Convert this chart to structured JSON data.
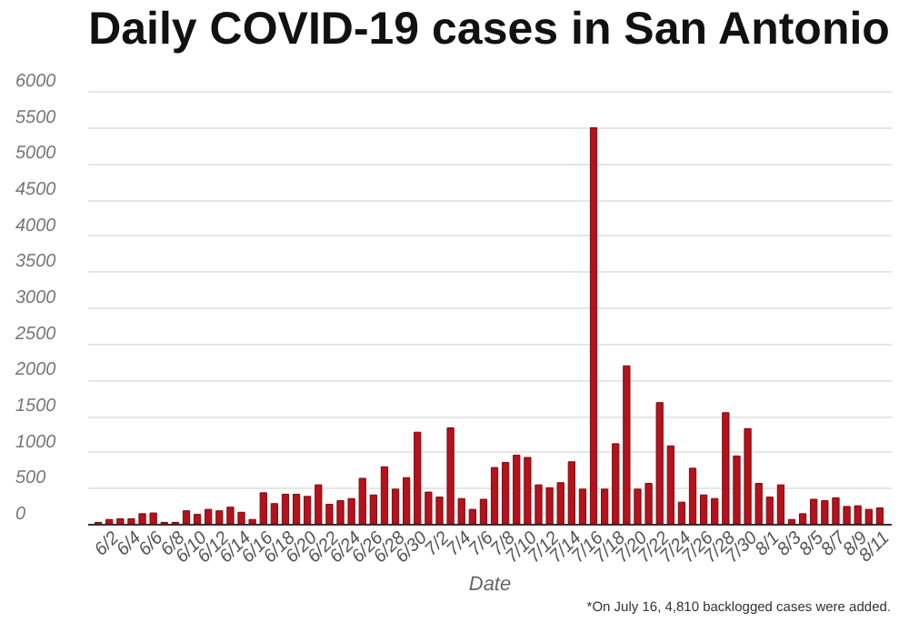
{
  "chart_data": {
    "type": "bar",
    "title": "Daily COVID-19 cases in San Antonio",
    "xlabel": "Date",
    "annotations": [
      "*On July 16, 4,810 backlogged cases were added."
    ],
    "categories": [
      null,
      "6/2",
      null,
      "6/4",
      null,
      "6/6",
      null,
      "6/8",
      null,
      "6/10",
      null,
      "6/12",
      null,
      "6/14",
      null,
      "6/16",
      null,
      "6/18",
      null,
      "6/20",
      null,
      "6/22",
      null,
      "6/24",
      null,
      "6/26",
      null,
      "6/28",
      null,
      "6/30",
      null,
      "7/2",
      null,
      "7/4",
      null,
      "7/6",
      null,
      "7/8",
      null,
      "7/10",
      null,
      "7/12",
      null,
      "7/14",
      null,
      "7/16",
      null,
      "7/18",
      null,
      "7/20",
      null,
      "7/22",
      null,
      "7/24",
      null,
      "7/26",
      null,
      "7/28",
      null,
      "7/30",
      null,
      "8/1",
      null,
      "8/3",
      null,
      "8/5",
      null,
      "8/7",
      null,
      "8/9",
      null,
      "8/11"
    ],
    "values": [
      20,
      60,
      70,
      70,
      140,
      150,
      20,
      20,
      180,
      130,
      200,
      180,
      230,
      160,
      60,
      430,
      280,
      410,
      410,
      380,
      540,
      270,
      320,
      350,
      630,
      400,
      790,
      480,
      640,
      1270,
      440,
      370,
      1330,
      350,
      200,
      340,
      780,
      850,
      950,
      920,
      540,
      500,
      570,
      860,
      480,
      5490,
      480,
      1110,
      2190,
      480,
      560,
      1680,
      1080,
      300,
      770,
      400,
      350,
      1540,
      940,
      1320,
      560,
      370,
      540,
      60,
      140,
      340,
      320,
      360,
      240,
      250,
      200,
      220
    ],
    "color": "#b5121b",
    "ylim": [
      0,
      6000
    ],
    "yticks": [
      0,
      500,
      1000,
      1500,
      2000,
      2500,
      3000,
      3500,
      4000,
      4500,
      5000,
      5500,
      6000
    ],
    "grid": "y"
  }
}
